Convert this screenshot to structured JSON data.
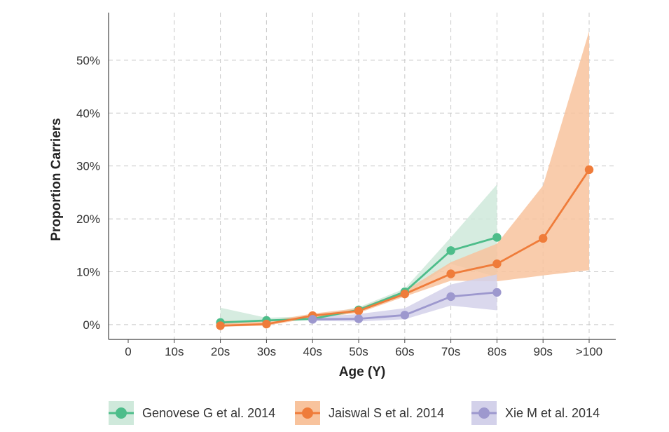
{
  "chart_data": {
    "type": "line",
    "title": "",
    "xlabel": "Age (Y)",
    "ylabel": "Proportion Carriers",
    "categories": [
      "0",
      "10s",
      "20s",
      "30s",
      "40s",
      "50s",
      "60s",
      "70s",
      "80s",
      "90s",
      ">100"
    ],
    "y_ticks": [
      "0%",
      "10%",
      "20%",
      "30%",
      "40%",
      "50%"
    ],
    "ylim": [
      -0.028,
      0.59
    ],
    "grid": true,
    "legend_position": "bottom",
    "series": [
      {
        "name": "Genovese G et al. 2014",
        "color": "#4dbd8a",
        "band_color": "#cfe9db",
        "values": [
          null,
          null,
          0.004,
          0.008,
          0.011,
          0.028,
          0.062,
          0.14,
          0.165,
          null,
          null
        ],
        "lower": [
          null,
          null,
          0.0,
          0.005,
          0.008,
          0.024,
          0.055,
          0.115,
          0.09,
          null,
          null
        ],
        "upper": [
          null,
          null,
          0.032,
          0.013,
          0.016,
          0.033,
          0.068,
          0.165,
          0.265,
          null,
          null
        ]
      },
      {
        "name": "Jaiswal S et al. 2014",
        "color": "#ef7c3a",
        "band_color": "#f8c39d",
        "values": [
          null,
          null,
          -0.002,
          0.001,
          0.017,
          0.026,
          0.058,
          0.096,
          0.115,
          0.163,
          0.293
        ],
        "lower": [
          null,
          null,
          -0.004,
          -0.002,
          0.013,
          0.022,
          0.053,
          0.083,
          0.082,
          0.093,
          0.103
        ],
        "upper": [
          null,
          null,
          0.008,
          0.006,
          0.021,
          0.031,
          0.064,
          0.118,
          0.153,
          0.263,
          0.555
        ]
      },
      {
        "name": "Xie M et al. 2014",
        "color": "#9d98ce",
        "band_color": "#d3d1ea",
        "values": [
          null,
          null,
          null,
          null,
          0.01,
          0.011,
          0.018,
          0.053,
          0.061,
          null,
          null
        ],
        "lower": [
          null,
          null,
          null,
          null,
          0.007,
          0.006,
          0.01,
          0.036,
          0.027,
          null,
          null
        ],
        "upper": [
          null,
          null,
          null,
          null,
          0.014,
          0.02,
          0.031,
          0.076,
          0.095,
          null,
          null
        ]
      }
    ]
  }
}
